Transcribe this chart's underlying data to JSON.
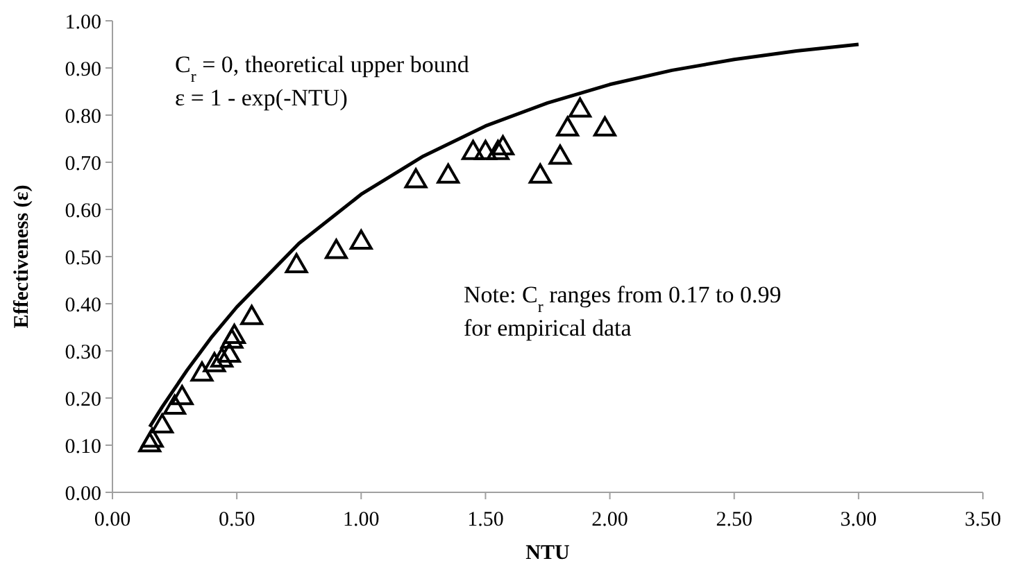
{
  "chart_data": {
    "type": "scatter",
    "xlabel": "NTU",
    "ylabel": "Effectiveness (ε)",
    "xlim": [
      0,
      3.5
    ],
    "xticks": [
      {
        "value": 0,
        "label": "0.00"
      },
      {
        "value": 0.5,
        "label": "0.50"
      },
      {
        "value": 1,
        "label": "1.00"
      },
      {
        "value": 1.5,
        "label": "1.50"
      },
      {
        "value": 2,
        "label": "2.00"
      },
      {
        "value": 2.5,
        "label": "2.50"
      },
      {
        "value": 3,
        "label": "3.00"
      },
      {
        "value": 3.5,
        "label": "3.50"
      }
    ],
    "ylim": [
      0,
      1
    ],
    "yticks": [
      {
        "value": 0,
        "label": "0.00"
      },
      {
        "value": 0.1,
        "label": "0.10"
      },
      {
        "value": 0.2,
        "label": "0.20"
      },
      {
        "value": 0.3,
        "label": "0.30"
      },
      {
        "value": 0.4,
        "label": "0.40"
      },
      {
        "value": 0.5,
        "label": "0.50"
      },
      {
        "value": 0.6,
        "label": "0.60"
      },
      {
        "value": 0.7,
        "label": "0.70"
      },
      {
        "value": 0.8,
        "label": "0.80"
      },
      {
        "value": 0.9,
        "label": "0.90"
      },
      {
        "value": 1,
        "label": "1.00"
      }
    ],
    "grid": false,
    "series": [
      {
        "type": "line",
        "color": "#000000",
        "marker": "none",
        "line_style": "solid",
        "x": [
          0.15,
          0.2,
          0.3,
          0.4,
          0.5,
          0.75,
          1,
          1.25,
          1.5,
          1.75,
          2,
          2.25,
          2.5,
          2.75,
          3
        ],
        "values": [
          0.139,
          0.181,
          0.259,
          0.33,
          0.393,
          0.528,
          0.632,
          0.713,
          0.777,
          0.826,
          0.865,
          0.895,
          0.918,
          0.936,
          0.95
        ]
      },
      {
        "color": "#000000",
        "marker": "triangle",
        "x": [
          0.15,
          0.16,
          0.2,
          0.25,
          0.28,
          0.36,
          0.41,
          0.44,
          0.47,
          0.48,
          0.49,
          0.56,
          0.74,
          0.9,
          1.0,
          1.22,
          1.35,
          1.45,
          1.5,
          1.55,
          1.57,
          1.72,
          1.8,
          1.83,
          1.88,
          1.98
        ],
        "values": [
          0.1,
          0.11,
          0.14,
          0.18,
          0.2,
          0.25,
          0.27,
          0.28,
          0.29,
          0.32,
          0.33,
          0.37,
          0.48,
          0.51,
          0.53,
          0.66,
          0.67,
          0.72,
          0.72,
          0.72,
          0.73,
          0.67,
          0.71,
          0.77,
          0.81,
          0.77
        ]
      }
    ],
    "annotations": [
      "C$_{r}$ = 0, theoretical upper bound",
      "ε = 1 - exp(-NTU)",
      "Note: C$_{r}$ ranges from 0.17 to 0.99",
      "for empirical data"
    ]
  }
}
